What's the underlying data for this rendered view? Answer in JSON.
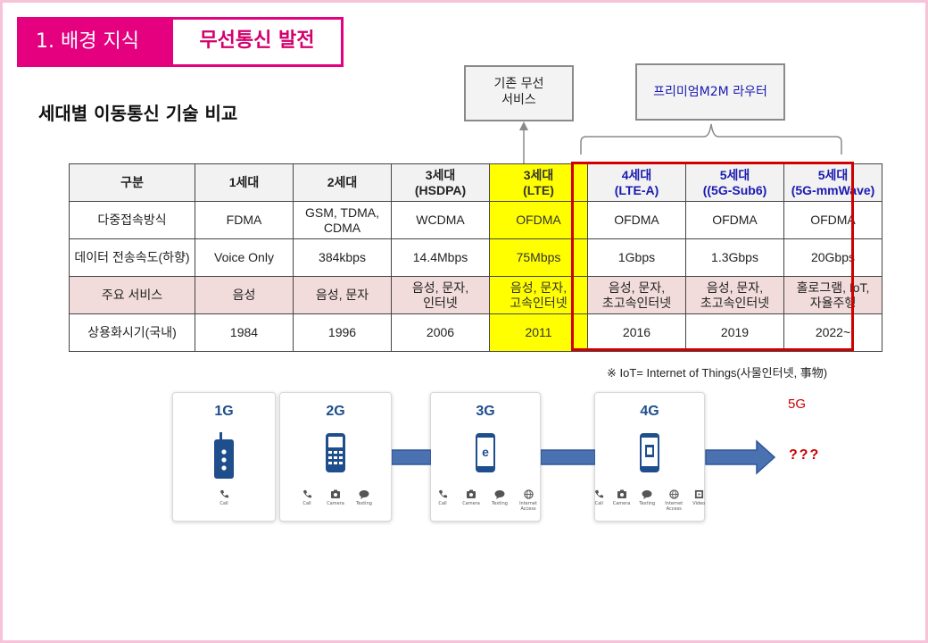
{
  "header": {
    "number_label": "1. 배경 지식",
    "title": "무선통신 발전"
  },
  "subtitle": "세대별 이동통신 기술 비교",
  "callouts": {
    "legacy": "기존 무선\n서비스",
    "router": "프리미엄M2M 라우터"
  },
  "table": {
    "columns": [
      "구분",
      "1세대",
      "2세대",
      "3세대\n(HSDPA)",
      "3세대\n(LTE)",
      "4세대\n(LTE-A)",
      "5세대\n((5G-Sub6)",
      "5세대\n(5G-mmWave)"
    ],
    "rows": [
      [
        "다중접속방식",
        "FDMA",
        "GSM, TDMA,\nCDMA",
        "WCDMA",
        "OFDMA",
        "OFDMA",
        "OFDMA",
        "OFDMA"
      ],
      [
        "데이터 전송속도(하향)",
        "Voice Only",
        "384kbps",
        "14.4Mbps",
        "75Mbps",
        "1Gbps",
        "1.3Gbps",
        "20Gbps"
      ],
      [
        "주요 서비스",
        "음성",
        "음성, 문자",
        "음성, 문자,\n인터넷",
        "음성, 문자,\n고속인터넷",
        "음성, 문자,\n초고속인터넷",
        "음성, 문자,\n초고속인터넷",
        "홀로그램, IoT,\n자율주행"
      ],
      [
        "상용화시기(국내)",
        "1984",
        "1996",
        "2006",
        "2011",
        "2016",
        "2019",
        "2022~"
      ]
    ]
  },
  "note": "※ IoT= Internet of Things(사물인터넷, 事物)",
  "generations": [
    {
      "label": "1G",
      "features": [
        "Call"
      ]
    },
    {
      "label": "2G",
      "features": [
        "Call",
        "Camera",
        "Texting"
      ]
    },
    {
      "label": "3G",
      "features": [
        "Call",
        "Camera",
        "Texting",
        "Internet Access"
      ]
    },
    {
      "label": "4G",
      "features": [
        "Call",
        "Camera",
        "Texting",
        "Internet Access",
        "Video"
      ]
    }
  ],
  "future": {
    "label": "5G",
    "unknown": "???"
  },
  "colors": {
    "accent": "#e4007f",
    "highlight": "#ffff00",
    "frame": "#d00000",
    "phone": "#1e4e8c"
  }
}
